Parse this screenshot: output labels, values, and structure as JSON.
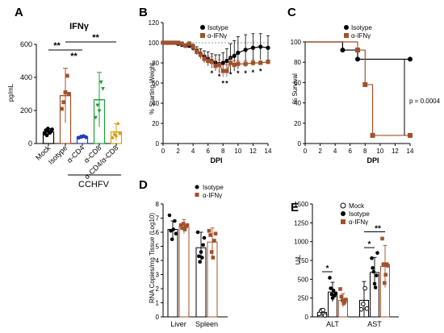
{
  "chart_data": [
    {
      "panel": "A",
      "type": "bar",
      "title": "IFNγ",
      "ylabel": "pg/mL",
      "ylim": [
        0,
        600
      ],
      "yticks": [
        "0",
        "200",
        "400",
        "600"
      ],
      "categories": [
        "Mock",
        "Isotype",
        "α-CD4",
        "α-CD8",
        "α-CD4/α-CD8"
      ],
      "values": [
        70,
        290,
        40,
        265,
        70
      ],
      "errors": [
        20,
        165,
        10,
        165,
        50
      ],
      "colors": [
        "#000000",
        "#a0522d",
        "#1f3fbf",
        "#1e9e3a",
        "#d4a017"
      ],
      "points": [
        [
          60,
          80,
          50,
          90,
          70,
          65,
          75,
          85
        ],
        [
          210,
          250,
          310,
          410,
          300
        ],
        [
          35,
          40,
          45,
          38
        ],
        [
          155,
          230,
          195,
          370,
          330
        ],
        [
          35,
          55,
          45,
          120,
          60
        ]
      ],
      "significance": [
        "**",
        "**",
        "**"
      ],
      "group_label": "CCHFV"
    },
    {
      "panel": "B",
      "type": "line",
      "xlabel": "DPI",
      "ylabel": "% Starting Weight",
      "xlim": [
        0,
        14
      ],
      "ylim": [
        0,
        120
      ],
      "xticks": [
        "0",
        "2",
        "4",
        "6",
        "8",
        "10",
        "12",
        "14"
      ],
      "yticks": [
        "0",
        "20",
        "40",
        "60",
        "80",
        "100",
        "120"
      ],
      "series": [
        {
          "name": "Isotype",
          "color": "#000000",
          "x": [
            0,
            0.5,
            1,
            1.5,
            2,
            2.5,
            3,
            3.5,
            4,
            4.5,
            5,
            5.5,
            6,
            6.5,
            7,
            7.5,
            8,
            8.5,
            9,
            9.5,
            10,
            11,
            12,
            13,
            14
          ],
          "y": [
            100,
            100,
            100,
            100,
            99,
            98,
            97,
            97,
            95,
            92,
            89,
            86,
            84,
            82,
            80,
            79,
            80,
            82,
            85,
            87,
            90,
            93,
            95,
            96,
            95
          ],
          "err": [
            0,
            1,
            1,
            1,
            2,
            2,
            2,
            2,
            3,
            4,
            5,
            6,
            7,
            7,
            8,
            9,
            10,
            12,
            14,
            15,
            16,
            15,
            14,
            13,
            12
          ]
        },
        {
          "name": "α-IFNγ",
          "color": "#a0522d",
          "x": [
            0,
            0.5,
            1,
            1.5,
            2,
            2.5,
            3,
            3.5,
            4,
            4.5,
            5,
            5.5,
            6,
            6.5,
            7,
            7.5,
            8,
            8.5,
            9,
            9.5,
            10,
            11,
            12,
            13,
            14
          ],
          "y": [
            100,
            100,
            100,
            100,
            100,
            99,
            97,
            99,
            96,
            91,
            88,
            84,
            82,
            81,
            77,
            78,
            72,
            72,
            80,
            78,
            79,
            79,
            80,
            80,
            81
          ],
          "err": [
            0,
            1,
            1,
            1,
            1,
            2,
            2,
            2,
            3,
            3,
            4,
            4,
            5,
            5,
            5,
            5,
            6,
            6,
            5,
            4,
            3,
            3,
            3,
            2,
            2
          ]
        }
      ],
      "annotations": [
        "*",
        "*",
        "*",
        "*",
        "*",
        "*",
        "*",
        "*",
        "*"
      ]
    },
    {
      "panel": "C",
      "type": "line",
      "xlabel": "DPI",
      "ylabel": "% Survival",
      "xlim": [
        0,
        14
      ],
      "ylim": [
        0,
        100
      ],
      "xticks": [
        "0",
        "2",
        "4",
        "6",
        "8",
        "10",
        "12",
        "14"
      ],
      "yticks": [
        "0",
        "20",
        "40",
        "60",
        "80",
        "100"
      ],
      "series": [
        {
          "name": "Isotype",
          "color": "#000000",
          "x": [
            0,
            5,
            7,
            14
          ],
          "y": [
            100,
            92,
            83,
            83
          ]
        },
        {
          "name": "α-IFNγ",
          "color": "#a0522d",
          "x": [
            0,
            7,
            8,
            9,
            14
          ],
          "y": [
            100,
            92,
            58,
            8,
            8
          ]
        }
      ],
      "annotation": "p = 0.0004"
    },
    {
      "panel": "D",
      "type": "bar",
      "ylabel": "RNA Copies/mg Tissue (Log10)",
      "ylim": [
        0,
        8
      ],
      "yticks": [
        "0",
        "1",
        "2",
        "3",
        "4",
        "5",
        "6",
        "7",
        "8"
      ],
      "categories": [
        "Liver",
        "Spleen"
      ],
      "series": [
        {
          "name": "Isotype",
          "color": "#000000",
          "values": [
            6.2,
            4.9
          ],
          "errors": [
            0.6,
            1.1
          ],
          "points": [
            [
              7.2,
              6.1,
              5.5,
              6.2,
              6.8,
              5.9
            ],
            [
              6.0,
              4.3,
              3.9,
              4.6,
              4.2,
              5.1,
              5.6
            ]
          ]
        },
        {
          "name": "α-IFNγ",
          "color": "#a0522d",
          "values": [
            6.4,
            5.3
          ],
          "errors": [
            0.5,
            1.0
          ],
          "points": [
            [
              6.5,
              6.3,
              6.6,
              6.2,
              6.4,
              6.5
            ],
            [
              6.1,
              5.8,
              4.6,
              4.2,
              5.4,
              5.9
            ]
          ]
        }
      ]
    },
    {
      "panel": "E",
      "type": "bar",
      "ylabel": "U/L",
      "ylim": [
        0,
        1500
      ],
      "yticks": [
        "0",
        "250",
        "500",
        "750",
        "1000",
        "1250",
        "1500"
      ],
      "categories": [
        "ALT",
        "AST"
      ],
      "series": [
        {
          "name": "Mock",
          "color": "#ffffff",
          "stroke": "#000000",
          "values": [
            60,
            220
          ],
          "errors": [
            50,
            250
          ],
          "points": [
            [
              40,
              80,
              90,
              20
            ],
            [
              100,
              170,
              380,
              110
            ]
          ]
        },
        {
          "name": "Isotype",
          "color": "#000000",
          "values": [
            330,
            590
          ],
          "errors": [
            130,
            200
          ],
          "points": [
            [
              520,
              380,
              300,
              250,
              350,
              280,
              310
            ],
            [
              780,
              650,
              600,
              440,
              390,
              550,
              850
            ]
          ]
        },
        {
          "name": "α-IFNγ",
          "color": "#a0522d",
          "values": [
            220,
            670
          ],
          "errors": [
            90,
            280
          ],
          "points": [
            [
              370,
              270,
              220,
              180,
              200,
              230
            ],
            [
              1040,
              700,
              450,
              560,
              700,
              680
            ]
          ]
        }
      ],
      "significance": [
        "*",
        "*",
        "**"
      ]
    }
  ]
}
